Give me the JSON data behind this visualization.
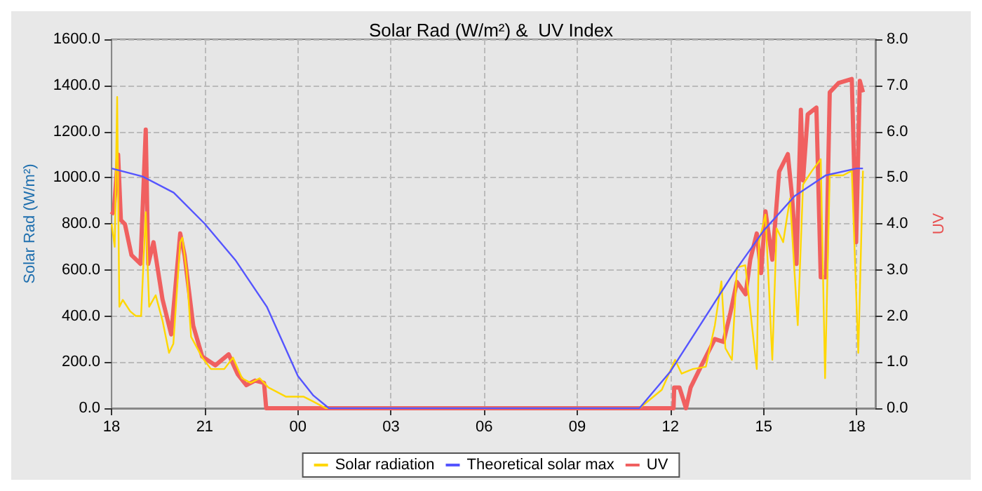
{
  "chart_data": {
    "type": "line",
    "title": "Solar Rad (W/m²) &  UV Index",
    "ylabel": "Solar Rad (W/m²)",
    "y2label": "UV",
    "xlim": [
      18,
      42.6
    ],
    "ylim": [
      0,
      1600
    ],
    "y2lim": [
      0,
      8
    ],
    "xticks": [
      {
        "value": 18,
        "label": "18"
      },
      {
        "value": 21,
        "label": "21"
      },
      {
        "value": 24,
        "label": "00"
      },
      {
        "value": 27,
        "label": "03"
      },
      {
        "value": 30,
        "label": "06"
      },
      {
        "value": 33,
        "label": "09"
      },
      {
        "value": 36,
        "label": "12"
      },
      {
        "value": 39,
        "label": "15"
      },
      {
        "value": 42,
        "label": "18"
      }
    ],
    "yticks": [
      {
        "value": 0,
        "label": "0.0"
      },
      {
        "value": 200,
        "label": "200.0"
      },
      {
        "value": 400,
        "label": "400.0"
      },
      {
        "value": 600,
        "label": "600.0"
      },
      {
        "value": 800,
        "label": "800.0"
      },
      {
        "value": 1000,
        "label": "1000.0"
      },
      {
        "value": 1200,
        "label": "1200.0"
      },
      {
        "value": 1400,
        "label": "1400.0"
      },
      {
        "value": 1600,
        "label": "1600.0"
      }
    ],
    "y2ticks": [
      {
        "value": 0,
        "label": "0.0"
      },
      {
        "value": 1,
        "label": "1.0"
      },
      {
        "value": 2,
        "label": "2.0"
      },
      {
        "value": 3,
        "label": "3.0"
      },
      {
        "value": 4,
        "label": "4.0"
      },
      {
        "value": 5,
        "label": "5.0"
      },
      {
        "value": 6,
        "label": "6.0"
      },
      {
        "value": 7,
        "label": "7.0"
      },
      {
        "value": 8,
        "label": "8.0"
      }
    ],
    "grid": true,
    "legend": "bottom",
    "marker": "none",
    "series": [
      {
        "name": "Solar radiation",
        "color": "#ffd700",
        "x": [
          18.0,
          18.1,
          18.18,
          18.25,
          18.36,
          18.6,
          18.78,
          18.95,
          19.1,
          19.21,
          19.42,
          19.64,
          19.85,
          19.99,
          20.21,
          20.28,
          20.42,
          20.56,
          20.92,
          21.2,
          21.63,
          21.91,
          22.2,
          22.48,
          22.77,
          23.05,
          23.62,
          24.19,
          24.48,
          24.9,
          25.5,
          30,
          35.0,
          35.72,
          36.15,
          36.36,
          36.72,
          37.14,
          37.43,
          37.64,
          37.77,
          37.98,
          38.14,
          38.41,
          38.78,
          38.85,
          39.06,
          39.28,
          39.42,
          39.63,
          39.85,
          40.1,
          40.27,
          40.56,
          40.84,
          40.98,
          41.13,
          41.56,
          41.84,
          42.05,
          42.2
        ],
        "values": [
          800,
          700,
          1350,
          440,
          470,
          420,
          400,
          400,
          850,
          440,
          490,
          380,
          240,
          280,
          720,
          740,
          590,
          310,
          220,
          170,
          170,
          220,
          130,
          110,
          130,
          90,
          50,
          50,
          30,
          0,
          0,
          0,
          0,
          80,
          210,
          150,
          170,
          180,
          360,
          550,
          260,
          210,
          610,
          620,
          170,
          720,
          840,
          210,
          780,
          720,
          910,
          360,
          970,
          1030,
          1080,
          130,
          1010,
          1010,
          1030,
          240,
          1030
        ]
      },
      {
        "name": "Theoretical solar max",
        "color": "#5555ff",
        "x": [
          18,
          19,
          20,
          21,
          22,
          23,
          24,
          24.5,
          25,
          30,
          35,
          36,
          37,
          38,
          39,
          40,
          41,
          42,
          42.2
        ],
        "values": [
          1040,
          1005,
          935,
          800,
          640,
          440,
          140,
          55,
          0,
          0,
          0,
          160,
          370,
          580,
          770,
          920,
          1010,
          1040,
          1040
        ]
      },
      {
        "name": "UV",
        "color": "#f06060",
        "axis": "y2",
        "x": [
          18.0,
          18.07,
          18.21,
          18.3,
          18.43,
          18.64,
          18.93,
          19.1,
          19.18,
          19.35,
          19.64,
          19.92,
          20.21,
          20.35,
          20.63,
          20.92,
          21.34,
          21.77,
          22.06,
          22.34,
          22.62,
          22.91,
          22.98,
          25,
          30,
          36.1,
          36.12,
          36.29,
          36.5,
          36.65,
          37.0,
          37.43,
          37.71,
          37.93,
          38.14,
          38.42,
          38.57,
          38.78,
          38.92,
          39.06,
          39.28,
          39.5,
          39.78,
          39.92,
          40.06,
          40.2,
          40.27,
          40.42,
          40.7,
          40.84,
          41.01,
          41.13,
          41.41,
          41.84,
          41.98,
          42.1,
          42.2
        ],
        "values": [
          4.2,
          4.27,
          5.5,
          4.08,
          3.99,
          3.32,
          3.13,
          6.04,
          3.13,
          3.6,
          2.36,
          1.6,
          3.79,
          3.32,
          1.79,
          1.12,
          0.93,
          1.17,
          0.74,
          0.5,
          0.6,
          0.55,
          0,
          0,
          0,
          0,
          0.45,
          0.45,
          0,
          0.45,
          0.93,
          1.5,
          1.44,
          2.07,
          2.74,
          2.47,
          3.22,
          3.79,
          2.93,
          4.27,
          3.22,
          5.13,
          5.51,
          4.56,
          3.13,
          6.47,
          4.94,
          6.37,
          6.52,
          2.84,
          2.84,
          6.85,
          7.05,
          7.14,
          3.6,
          7.1,
          6.85
        ]
      }
    ]
  }
}
